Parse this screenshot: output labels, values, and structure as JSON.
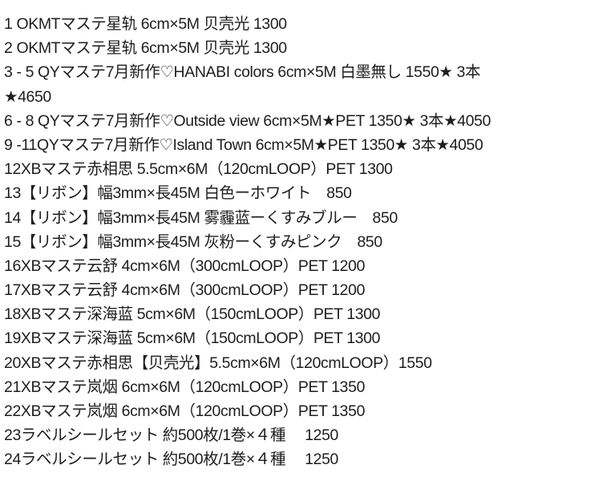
{
  "items": [
    {
      "text": "1 OKMTマステ星轨 6cm×5M 贝壳光  1300"
    },
    {
      "text": "2 OKMTマステ星轨 6cm×5M 贝壳光  1300"
    },
    {
      "text": "3 - 5 QYマステ7月新作♡HANABI colors 6cm×5M 白墨無し 1550★ 3本",
      "continuation": "★4650"
    },
    {
      "text": "6 - 8 QYマステ7月新作♡Outside view 6cm×5M★PET 1350★ 3本★4050"
    },
    {
      "text": "9 -11QYマステ7月新作♡Island Town 6cm×5M★PET 1350★ 3本★4050"
    },
    {
      "text": "12XBマステ赤相思 5.5cm×6M（120cmLOOP）PET 1300"
    },
    {
      "text": "13【リボン】幅3mm×長45M 白色ーホワイト　850"
    },
    {
      "text": "14【リボン】幅3mm×長45M 雾霾蓝ーくすみブルー　850"
    },
    {
      "text": "15【リボン】幅3mm×長45M 灰粉ーくすみピンク　850"
    },
    {
      "text": "16XBマステ云舒 4cm×6M（300cmLOOP）PET 1200"
    },
    {
      "text": "17XBマステ云舒 4cm×6M（300cmLOOP）PET 1200"
    },
    {
      "text": "18XBマステ深海蓝 5cm×6M（150cmLOOP）PET 1300"
    },
    {
      "text": "19XBマステ深海蓝 5cm×6M（150cmLOOP）PET 1300"
    },
    {
      "text": "20XBマステ赤相思【贝壳光】5.5cm×6M（120cmLOOP）1550"
    },
    {
      "text": "21XBマステ岚烟 6cm×6M（120cmLOOP）PET 1350"
    },
    {
      "text": "22XBマステ岚烟 6cm×6M（120cmLOOP）PET 1350"
    },
    {
      "text": "23ラベルシールセット 約500枚/1巻×４種　  1250"
    },
    {
      "text": "24ラベルシールセット 約500枚/1巻×４種　  1250"
    }
  ]
}
